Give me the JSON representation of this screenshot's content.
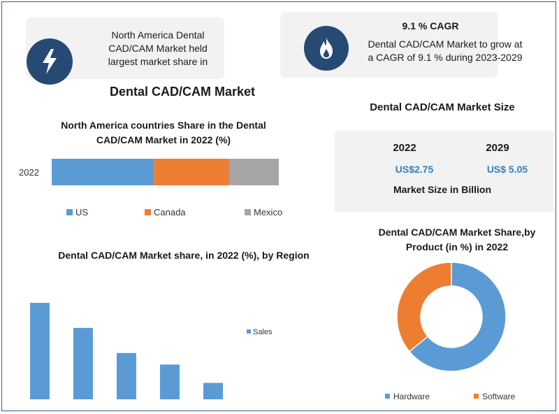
{
  "callouts": {
    "region_text": "North America Dental CAD/CAM Market held largest market share in",
    "cagr_title": "9.1 % CAGR",
    "cagr_text": "Dental CAD/CAM Market to grow at a CAGR of 9.1 % during 2023-2029"
  },
  "main_title": "Dental CAD/CAM Market",
  "market_size": {
    "title": "Dental CAD/CAM Market Size",
    "years": [
      "2022",
      "2029"
    ],
    "values": [
      "US$2.75",
      "US$ 5.05"
    ],
    "unit_label": "Market Size in Billion"
  },
  "colors": {
    "blue": "#5b9bd5",
    "orange": "#ed7d31",
    "gray": "#a5a5a5",
    "navy": "#264a73"
  },
  "chart_data": [
    {
      "type": "bar",
      "orientation": "horizontal-stacked",
      "title": "North America countries Share in the Dental CAD/CAM Market  in 2022 (%)",
      "categories": [
        "2022"
      ],
      "series": [
        {
          "name": "US",
          "values": [
            45
          ]
        },
        {
          "name": "Canada",
          "values": [
            33
          ]
        },
        {
          "name": "Mexico",
          "values": [
            22
          ]
        }
      ],
      "legend": "bottom"
    },
    {
      "type": "bar",
      "title": "Dental CAD/CAM Market share, in 2022 (%), by Region",
      "categories": [
        "",
        "",
        "",
        "",
        ""
      ],
      "series": [
        {
          "name": "Sales",
          "values": [
            100,
            74,
            48,
            36,
            17
          ]
        }
      ],
      "legend": "right"
    },
    {
      "type": "pie",
      "title": "Dental CAD/CAM Market Share,by Product  (in %) in 2022",
      "labels": [
        "Hardware",
        "Software"
      ],
      "values": [
        64,
        36
      ],
      "legend": "bottom"
    }
  ]
}
